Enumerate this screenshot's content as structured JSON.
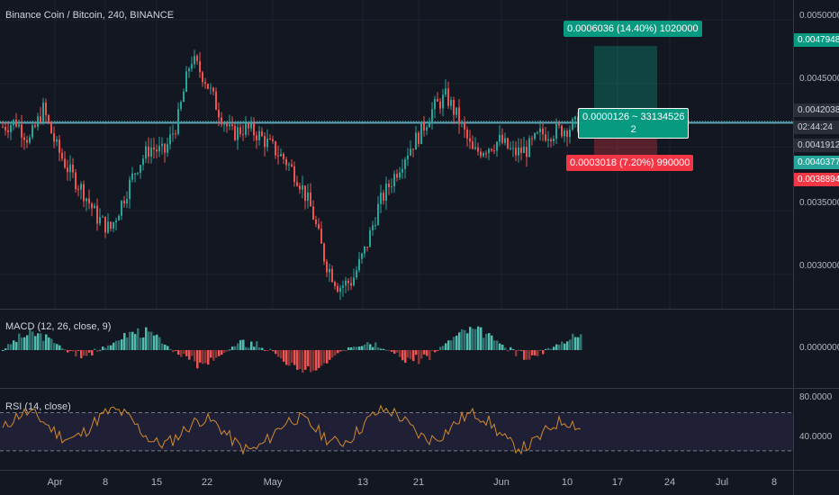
{
  "symbol_legend": "Binance Coin / Bitcoin, 240, BINANCE",
  "macd_legend": "MACD (12, 26, close, 9)",
  "rsi_legend": "RSI (14, close)",
  "colors": {
    "bg": "#131722",
    "up": "#26a69a",
    "down": "#ef5350",
    "rsi": "#d08a2e",
    "rsi_band": "#7e57c2",
    "target": "#089981",
    "stop": "#f23645"
  },
  "price_axis": [
    "0.0050000",
    "0.0045000",
    "0.0035000",
    "0.0030000"
  ],
  "price_tags": {
    "target": "0.0047948",
    "high_line": "0.0042038",
    "entry": "0.0041912",
    "countdown": "02:44:24",
    "mid": "0.0040377",
    "stop": "0.0038894"
  },
  "position_labels": {
    "target": "0.0006036 (14.40%) 1020000",
    "entry_line1": "0.0000126 ~ 33134526",
    "entry_line2": "2",
    "stop": "0.0003018 (7.20%) 990000"
  },
  "macd_axis": [
    "0.0000000"
  ],
  "rsi_axis": [
    "80.0000",
    "40.0000"
  ],
  "time_axis": [
    "Apr",
    "8",
    "15",
    "22",
    "May",
    "13",
    "21",
    "Jun",
    "10",
    "17",
    "24",
    "Jul",
    "8"
  ],
  "chart_data": {
    "type": "candlestick",
    "title": "Binance Coin / Bitcoin, 240, BINANCE",
    "ylim": [
      0.0028,
      0.0051
    ],
    "series_close_approx": [
      0.00416,
      0.0042,
      0.00405,
      0.0043,
      0.004,
      0.0038,
      0.00365,
      0.00345,
      0.00335,
      0.0036,
      0.00385,
      0.004,
      0.00395,
      0.0042,
      0.0047,
      0.00455,
      0.0043,
      0.0041,
      0.00415,
      0.0041,
      0.004,
      0.0039,
      0.00375,
      0.0035,
      0.0031,
      0.0029,
      0.00295,
      0.0032,
      0.00355,
      0.00375,
      0.00395,
      0.0041,
      0.0043,
      0.0044,
      0.0042,
      0.00395,
      0.004,
      0.00405,
      0.00395,
      0.00398,
      0.0041,
      0.00412,
      0.00415,
      0.00419
    ],
    "rsi_levels": [
      70,
      30
    ]
  }
}
